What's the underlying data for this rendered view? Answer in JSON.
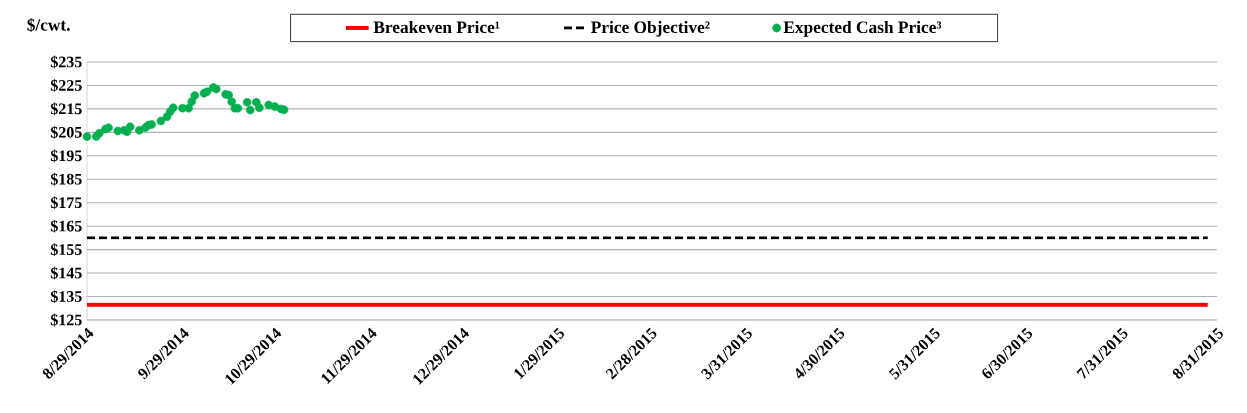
{
  "chart_data": {
    "type": "scatter",
    "ylabel": "$/cwt.",
    "xlim": [
      "2014-08-29",
      "2015-08-31"
    ],
    "ylim": [
      125,
      235
    ],
    "xticks": [
      {
        "value": "2014-08-29",
        "label": "8/29/2014"
      },
      {
        "value": "2014-09-29",
        "label": "9/29/2014"
      },
      {
        "value": "2014-10-29",
        "label": "10/29/2014"
      },
      {
        "value": "2014-11-29",
        "label": "11/29/2014"
      },
      {
        "value": "2014-12-29",
        "label": "12/29/2014"
      },
      {
        "value": "2015-01-29",
        "label": "1/29/2015"
      },
      {
        "value": "2015-02-28",
        "label": "2/28/2015"
      },
      {
        "value": "2015-03-31",
        "label": "3/31/2015"
      },
      {
        "value": "2015-04-30",
        "label": "4/30/2015"
      },
      {
        "value": "2015-05-31",
        "label": "5/31/2015"
      },
      {
        "value": "2015-06-30",
        "label": "6/30/2015"
      },
      {
        "value": "2015-07-31",
        "label": "7/31/2015"
      },
      {
        "value": "2015-08-31",
        "label": "8/31/2015"
      }
    ],
    "yticks": [
      {
        "value": 125,
        "label": "$125"
      },
      {
        "value": 135,
        "label": "$135"
      },
      {
        "value": 145,
        "label": "$145"
      },
      {
        "value": 155,
        "label": "$155"
      },
      {
        "value": 165,
        "label": "$165"
      },
      {
        "value": 175,
        "label": "$175"
      },
      {
        "value": 185,
        "label": "$185"
      },
      {
        "value": 195,
        "label": "$195"
      },
      {
        "value": 205,
        "label": "$205"
      },
      {
        "value": 215,
        "label": "$215"
      },
      {
        "value": 225,
        "label": "$225"
      },
      {
        "value": 235,
        "label": "$235"
      }
    ],
    "grid": "y",
    "legend": "top",
    "series": [
      {
        "name": "Breakeven Price¹",
        "type": "line",
        "line_style": "solid",
        "color": "#ff0000",
        "x": [
          "2014-08-29",
          "2015-08-28"
        ],
        "values": [
          131.5,
          131.5
        ]
      },
      {
        "name": "Price Objective²",
        "type": "line",
        "line_style": "dashed",
        "color": "#000000",
        "x": [
          "2014-08-29",
          "2015-08-28"
        ],
        "values": [
          160,
          160
        ]
      },
      {
        "name": "Expected Cash Price³",
        "marker": "circle",
        "color": "#00b050",
        "x": [
          "2014-08-29",
          "2014-09-01",
          "2014-09-02",
          "2014-09-04",
          "2014-09-05",
          "2014-09-08",
          "2014-09-10",
          "2014-09-11",
          "2014-09-12",
          "2014-09-15",
          "2014-09-17",
          "2014-09-18",
          "2014-09-19",
          "2014-09-22",
          "2014-09-24",
          "2014-09-25",
          "2014-09-26",
          "2014-09-29",
          "2014-10-01",
          "2014-10-02",
          "2014-10-03",
          "2014-10-06",
          "2014-10-07",
          "2014-10-09",
          "2014-10-10",
          "2014-10-13",
          "2014-10-14",
          "2014-10-15",
          "2014-10-16",
          "2014-10-17",
          "2014-10-20",
          "2014-10-21",
          "2014-10-23",
          "2014-10-24",
          "2014-10-27",
          "2014-10-29",
          "2014-10-31",
          "2014-11-01"
        ],
        "values": [
          203.2,
          203.2,
          204.6,
          206.4,
          207.0,
          205.6,
          205.9,
          205.3,
          207.4,
          205.9,
          207.1,
          208.1,
          208.4,
          209.8,
          211.7,
          213.8,
          215.5,
          215.3,
          215.3,
          218.1,
          220.7,
          221.7,
          222.3,
          224.1,
          223.5,
          221.2,
          220.9,
          218.1,
          215.3,
          215.3,
          217.8,
          214.5,
          217.8,
          215.5,
          216.7,
          216.0,
          215.0,
          214.6
        ]
      }
    ]
  }
}
